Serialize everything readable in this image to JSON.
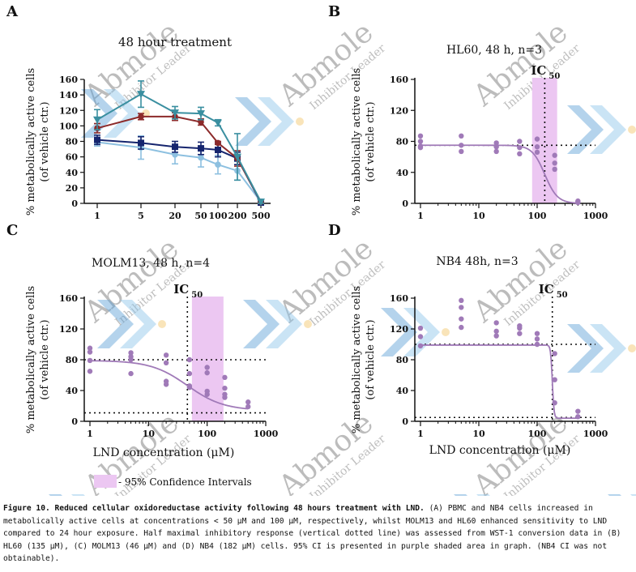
{
  "caption": {
    "lead": "Figure 10. Reduced cellular oxidoreductase activity following 48 hours treatment with LND.",
    "body": " (A) PBMC and NB4 cells increased in metabolically active cells at concentrations < 50 μM and 100 μM, respectively, whilst MOLM13 and HL60 enhanced sensitivity to LND compared to 24 hour exposure. Half maximal inhibitory response (vertical dotted line) was assessed from WST-1 conversion data in (B) HL60 (135 μM), (C) MOLM13 (46 μM) and (D) NB4 (182 μM) cells. 95% CI is presented in purple shaded area in graph. (NB4 CI was not obtainable)."
  },
  "watermark": {
    "brand": "Abmole",
    "sub": "Inhibitor Leader"
  },
  "legend": {
    "ci_label": "- 95% Confidence Intervals"
  },
  "colors": {
    "purple": "#a07ab8",
    "ci_fill": "#ecc7f2",
    "teal": "#3a8fa0",
    "red": "#8c2a2a",
    "navy": "#16256e",
    "lightblue": "#8dc0e0"
  },
  "chart_data": [
    {
      "panel": "A",
      "type": "line",
      "title": "48 hour treatment",
      "ylabel": "% metabolically active cells",
      "ylabel2": "(of vehicle ctr.)",
      "xlabel": "",
      "x": [
        1,
        5,
        20,
        50,
        100,
        200,
        500
      ],
      "xticks": [
        "1",
        "5",
        "20",
        "50",
        "100",
        "200",
        "500"
      ],
      "ylim": [
        0,
        160
      ],
      "yticks": [
        0,
        20,
        40,
        60,
        80,
        100,
        120,
        140,
        160
      ],
      "series": [
        {
          "name": "teal",
          "color": "#3a8fa0",
          "marker": "tri-down",
          "values": [
            108,
            141,
            117,
            116,
            104,
            60,
            2
          ],
          "err": [
            13,
            17,
            8,
            8,
            4,
            30,
            3
          ]
        },
        {
          "name": "red",
          "color": "#8c2a2a",
          "marker": "circle",
          "values": [
            97,
            112,
            112,
            105,
            78,
            58,
            2
          ],
          "err": [
            6,
            4,
            5,
            4,
            2,
            10,
            2
          ]
        },
        {
          "name": "navy",
          "color": "#16256e",
          "marker": "square",
          "values": [
            82,
            78,
            73,
            71,
            69,
            58,
            1
          ],
          "err": [
            6,
            8,
            7,
            8,
            9,
            8,
            2
          ]
        },
        {
          "name": "lightblue",
          "color": "#8dc0e0",
          "marker": "circle",
          "values": [
            79,
            72,
            63,
            59,
            50,
            42,
            2
          ],
          "err": [
            5,
            15,
            12,
            12,
            12,
            12,
            3
          ]
        }
      ]
    },
    {
      "panel": "B",
      "type": "scatter",
      "title": "HL60, 48 h, n=3",
      "ylabel": "% metabolically active cells",
      "ylabel2": "(of vehicle ctr.)",
      "xlabel": "",
      "xscale": "log",
      "xlim": [
        0.8,
        1000
      ],
      "xticks": [
        1,
        10,
        100,
        1000
      ],
      "ylim": [
        0,
        160
      ],
      "yticks": [
        0,
        40,
        80,
        120,
        160
      ],
      "ic50": 135,
      "ic50_label": "IC",
      "ic50_sub": "50",
      "ci": [
        82,
        220
      ],
      "top": 75,
      "bottom": 0,
      "hill": 4,
      "hline_top": 75,
      "hline_bottom": null,
      "points": [
        [
          1,
          87
        ],
        [
          1,
          80
        ],
        [
          1,
          74
        ],
        [
          1,
          72
        ],
        [
          5,
          87
        ],
        [
          5,
          75
        ],
        [
          5,
          67
        ],
        [
          20,
          78
        ],
        [
          20,
          73
        ],
        [
          20,
          67
        ],
        [
          50,
          80
        ],
        [
          50,
          72
        ],
        [
          50,
          64
        ],
        [
          100,
          83
        ],
        [
          100,
          73
        ],
        [
          100,
          66
        ],
        [
          200,
          62
        ],
        [
          200,
          52
        ],
        [
          200,
          44
        ],
        [
          500,
          3
        ],
        [
          500,
          2
        ],
        [
          500,
          1
        ]
      ]
    },
    {
      "panel": "C",
      "type": "scatter",
      "title": "MOLM13, 48 h, n=4",
      "ylabel": "% metabolically active cells",
      "ylabel2": "(of vehicle ctr.)",
      "xlabel": "LND concentration (μM)",
      "xscale": "log",
      "xlim": [
        0.8,
        1000
      ],
      "xticks": [
        1,
        10,
        100,
        1000
      ],
      "ylim": [
        0,
        160
      ],
      "yticks": [
        0,
        40,
        80,
        120,
        160
      ],
      "ic50": 46,
      "ic50_label": "IC",
      "ic50_sub": "50",
      "ci": [
        55,
        190
      ],
      "top": 79,
      "bottom": 14,
      "hill": 1.4,
      "hline_top": 80,
      "hline_bottom": 11,
      "points": [
        [
          1,
          95
        ],
        [
          1,
          90
        ],
        [
          1,
          79
        ],
        [
          1,
          65
        ],
        [
          5,
          89
        ],
        [
          5,
          84
        ],
        [
          5,
          80
        ],
        [
          5,
          62
        ],
        [
          20,
          86
        ],
        [
          20,
          76
        ],
        [
          20,
          52
        ],
        [
          20,
          48
        ],
        [
          50,
          80
        ],
        [
          50,
          62
        ],
        [
          50,
          46
        ],
        [
          50,
          44
        ],
        [
          100,
          70
        ],
        [
          100,
          63
        ],
        [
          100,
          39
        ],
        [
          100,
          35
        ],
        [
          200,
          57
        ],
        [
          200,
          43
        ],
        [
          200,
          35
        ],
        [
          200,
          31
        ],
        [
          500,
          25
        ],
        [
          500,
          19
        ]
      ]
    },
    {
      "panel": "D",
      "type": "scatter",
      "title": "NB4 48h, n=3",
      "ylabel": "% metabolically active cells",
      "ylabel2": "(of vehicle ctr.)",
      "xlabel": "LND concentration (μM)",
      "xscale": "log",
      "xlim": [
        0.8,
        1000
      ],
      "xticks": [
        1,
        10,
        100,
        1000
      ],
      "ylim": [
        0,
        160
      ],
      "yticks": [
        0,
        40,
        80,
        120,
        160
      ],
      "ic50": 182,
      "ic50_label": "IC",
      "ic50_sub": "50",
      "ci": null,
      "top": 99,
      "bottom": 4,
      "hill": 30,
      "hline_top": 100,
      "hline_bottom": 5,
      "points": [
        [
          1,
          121
        ],
        [
          1,
          110
        ],
        [
          1,
          98
        ],
        [
          5,
          157
        ],
        [
          5,
          148
        ],
        [
          5,
          133
        ],
        [
          5,
          122
        ],
        [
          20,
          128
        ],
        [
          20,
          117
        ],
        [
          20,
          111
        ],
        [
          50,
          124
        ],
        [
          50,
          121
        ],
        [
          50,
          114
        ],
        [
          100,
          114
        ],
        [
          100,
          107
        ],
        [
          100,
          100
        ],
        [
          200,
          88
        ],
        [
          200,
          54
        ],
        [
          200,
          24
        ],
        [
          500,
          13
        ],
        [
          500,
          6
        ]
      ]
    }
  ]
}
